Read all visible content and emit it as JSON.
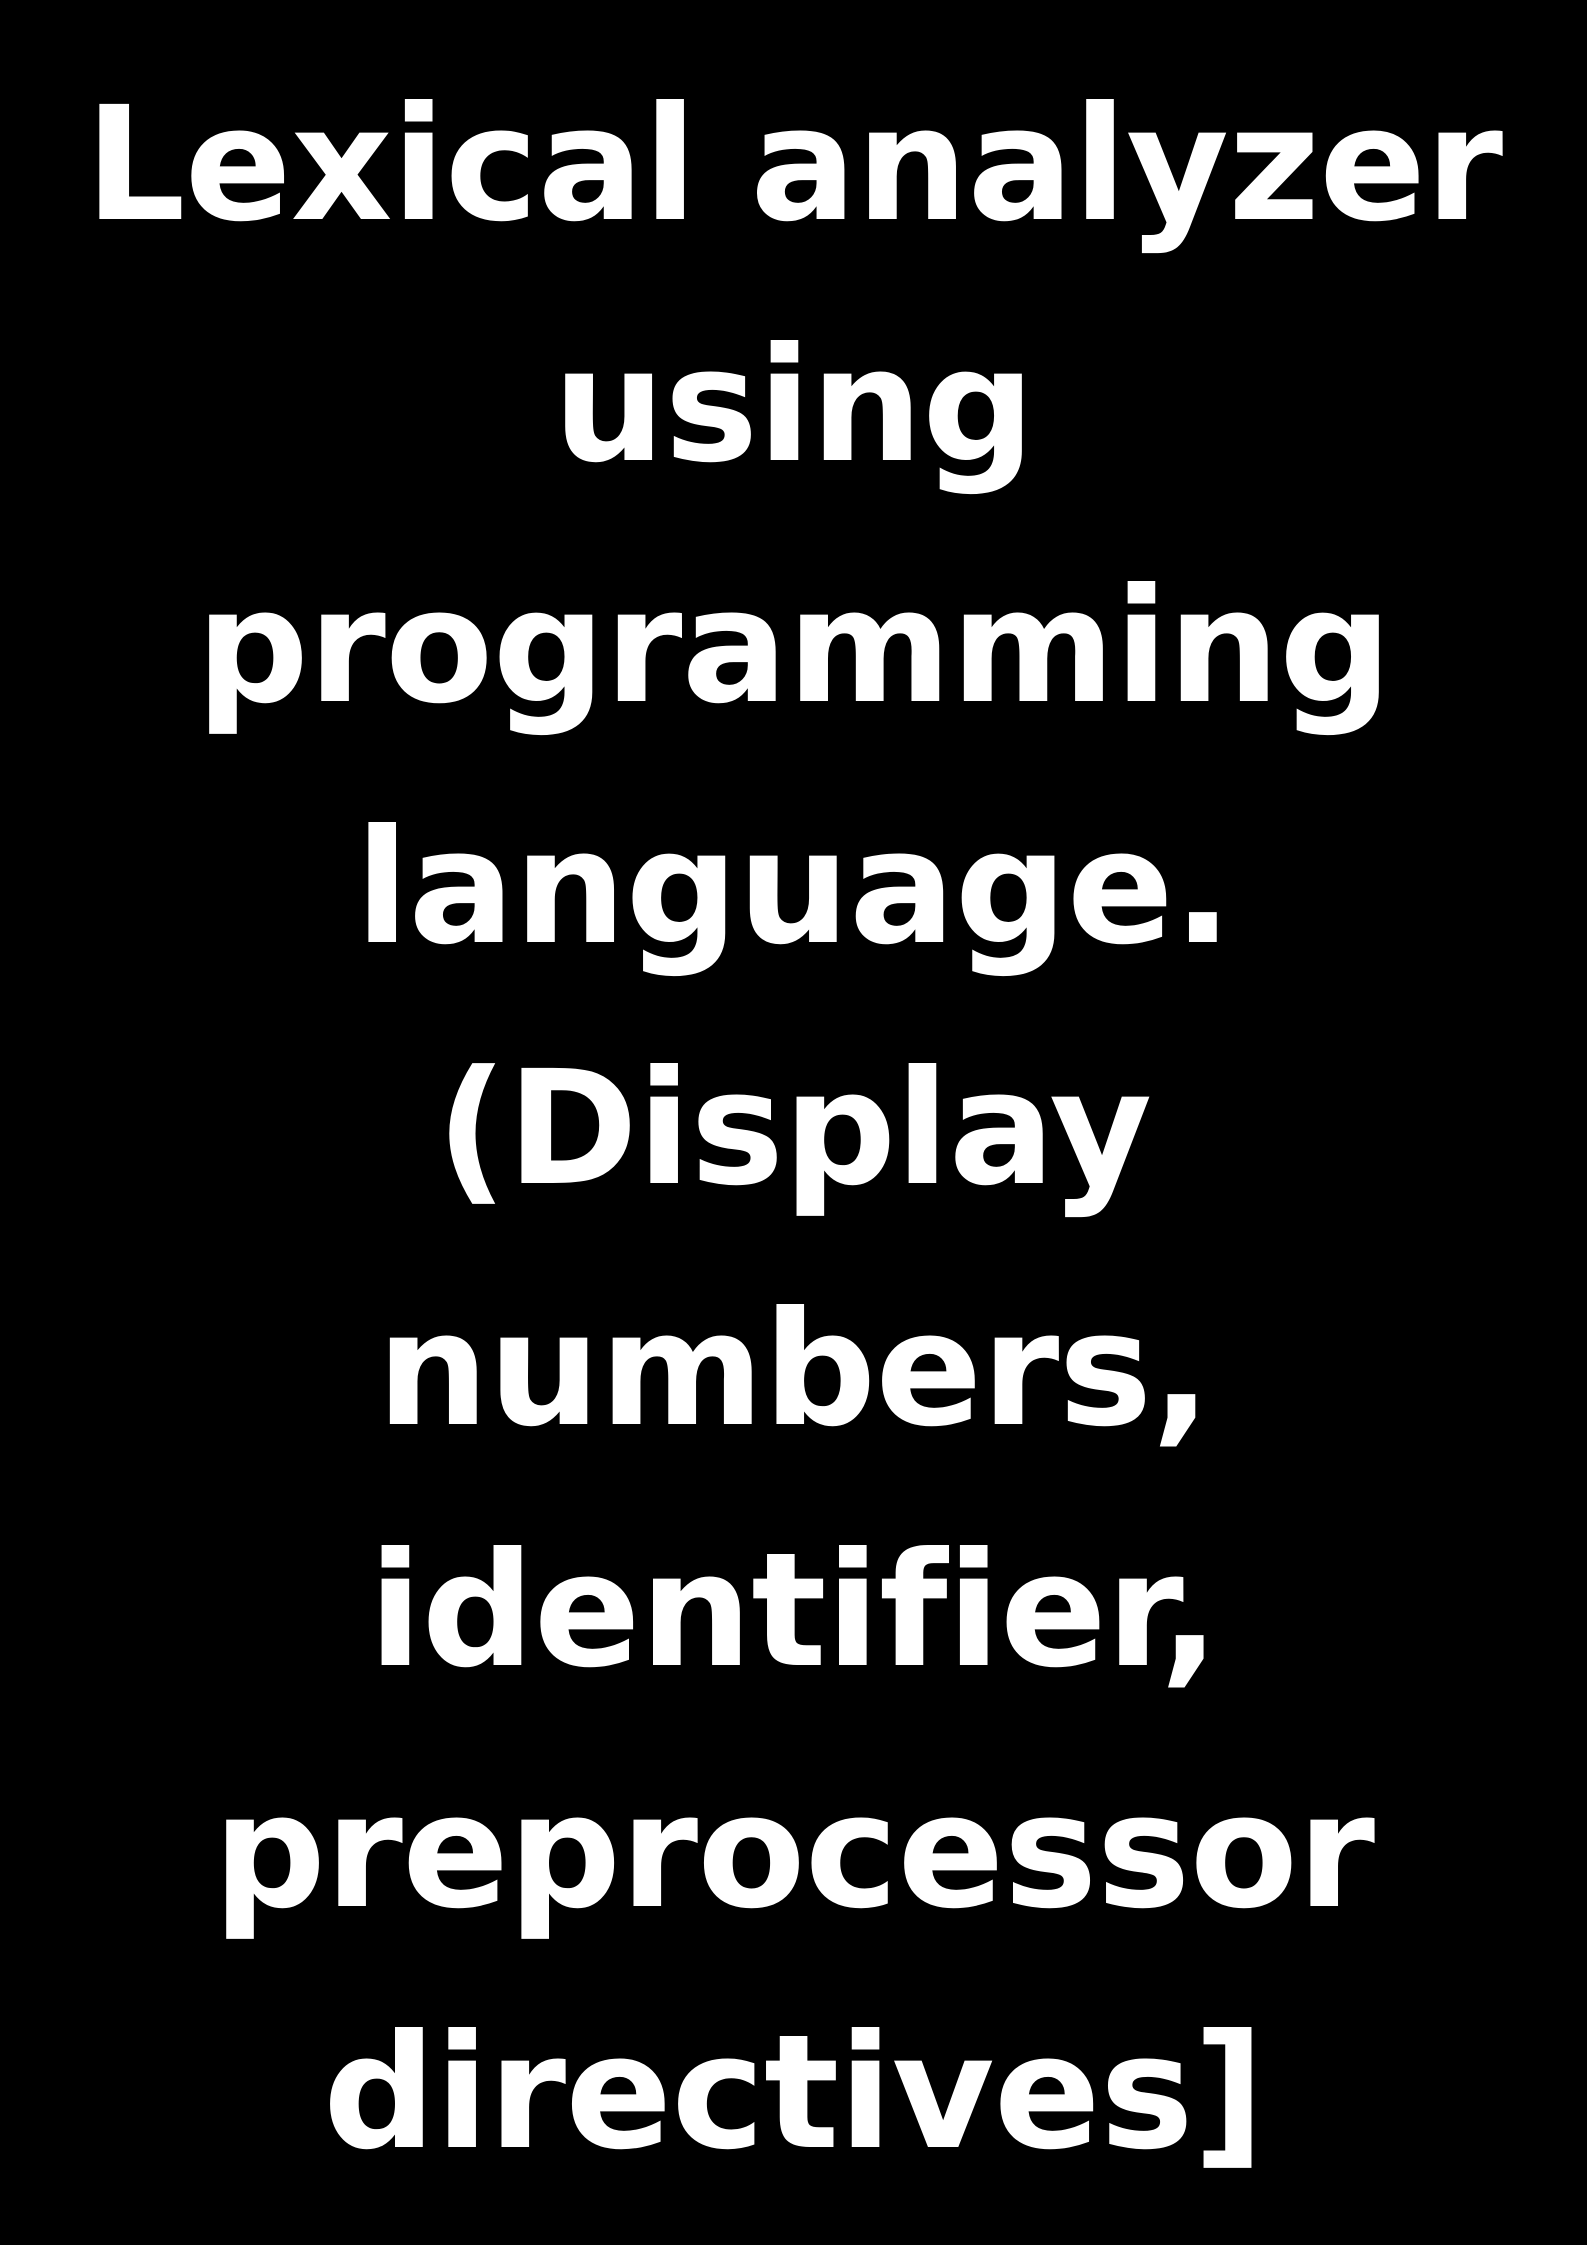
{
  "page": {
    "background": "#000000",
    "text_color": "#ffffff"
  },
  "title_lines": [
    "Lexical analyzer",
    "using",
    "programming",
    "language.",
    "(Display",
    "numbers,",
    "identifier,",
    "preprocessor",
    "directives]"
  ]
}
